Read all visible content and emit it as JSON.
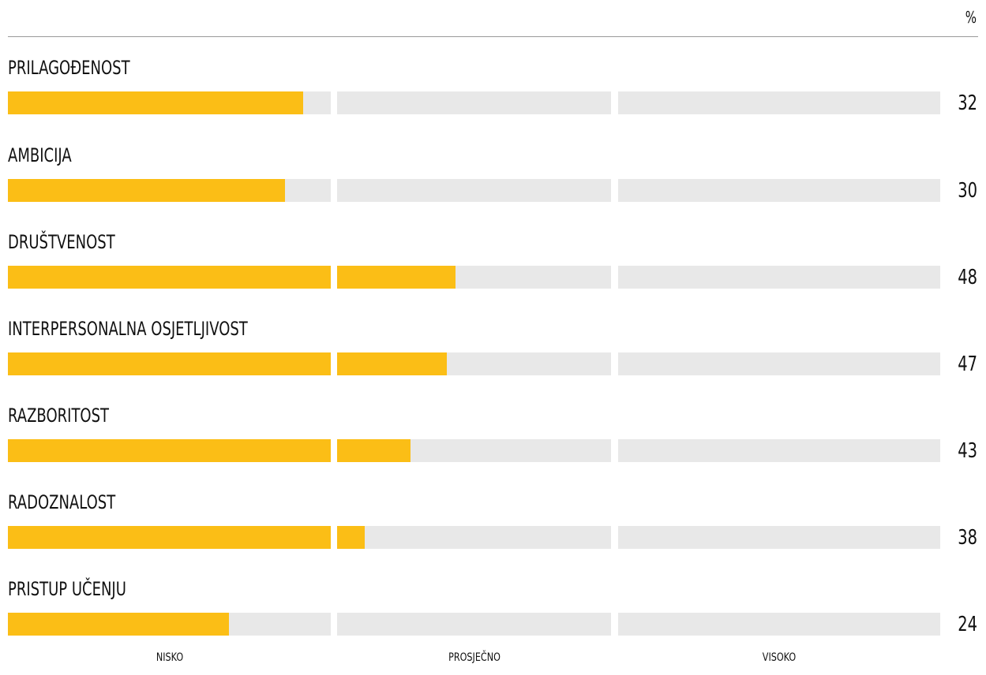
{
  "header": {
    "unit_label": "%"
  },
  "chart_data": {
    "type": "bar",
    "orientation": "horizontal",
    "unit": "%",
    "bands": [
      "NISKO",
      "PROSJEČNO",
      "VISOKO"
    ],
    "band_ranges": [
      [
        0,
        35
      ],
      [
        35,
        65
      ],
      [
        65,
        100
      ]
    ],
    "categories": [
      "PRILAGOĐENOST",
      "AMBICIJA",
      "DRUŠTVENOST",
      "INTERPERSONALNA OSJETLJIVOST",
      "RAZBORITOST",
      "RADOZNALOST",
      "PRISTUP UČENJU"
    ],
    "values": [
      32,
      30,
      48,
      47,
      43,
      38,
      24
    ],
    "xlim": [
      0,
      100
    ],
    "colors": {
      "fill": "#fbbe16",
      "track": "#e8e8e8"
    }
  }
}
